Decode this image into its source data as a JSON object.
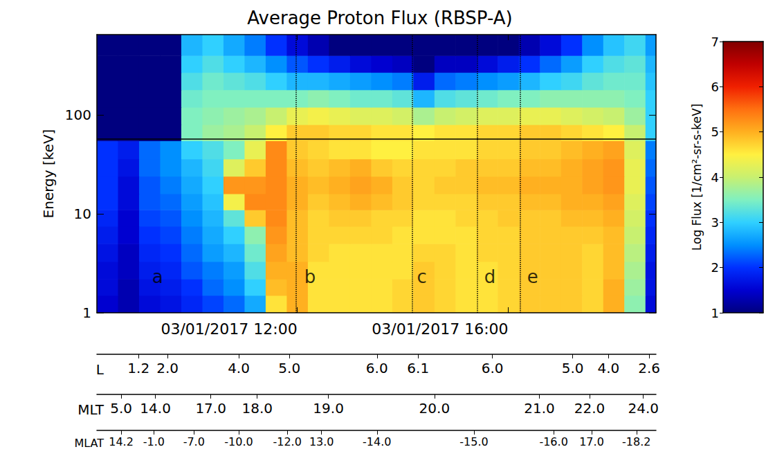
{
  "chart_data": {
    "type": "spectrogram",
    "title": "Average Proton Flux (RBSP-A)",
    "y_label": "Energy [keV]",
    "log": "y",
    "xlim": [
      8.2,
      18.8
    ],
    "xticks": [
      {
        "value": 12,
        "label": "03/01/2017 12:00"
      },
      {
        "value": 16,
        "label": "03/01/2017 16:00"
      }
    ],
    "ylim": [
      1,
      650
    ],
    "yticks": [
      1,
      10,
      100
    ],
    "time_edges": [
      8.2,
      8.6,
      9.0,
      9.4,
      9.8,
      10.2,
      10.6,
      11.0,
      11.4,
      11.8,
      12.2,
      12.6,
      13.0,
      13.4,
      13.8,
      14.2,
      14.6,
      15.0,
      15.4,
      15.8,
      16.2,
      16.6,
      17.0,
      17.4,
      17.8,
      18.2,
      18.6,
      18.8
    ],
    "energy_edges": [
      1,
      1.5,
      2.2,
      3.3,
      5,
      7.5,
      11,
      16,
      24,
      36,
      55,
      80,
      120,
      180,
      270,
      400,
      650
    ],
    "cells": [
      [
        1.5,
        1.3,
        1.6,
        1.7,
        1.9,
        2.1,
        2.3,
        2.7,
        4.6,
        5.0,
        4.6,
        4.6,
        4.6,
        4.6,
        4.7,
        4.8,
        4.7,
        4.6,
        4.6,
        4.7,
        4.8,
        4.8,
        4.8,
        4.7,
        5.0,
        3.6,
        1.6
      ],
      [
        1.6,
        1.3,
        1.7,
        1.8,
        2.0,
        2.3,
        2.5,
        3.0,
        4.9,
        5.0,
        4.6,
        4.6,
        4.6,
        4.6,
        4.7,
        4.8,
        4.7,
        4.6,
        4.6,
        4.7,
        4.8,
        4.8,
        4.8,
        4.7,
        5.0,
        3.7,
        1.7
      ],
      [
        1.6,
        1.4,
        1.8,
        1.9,
        2.2,
        2.4,
        2.6,
        3.2,
        5.0,
        5.0,
        4.6,
        4.6,
        4.6,
        4.6,
        4.6,
        4.8,
        4.7,
        4.6,
        4.6,
        4.7,
        4.8,
        4.8,
        4.8,
        4.7,
        4.9,
        3.8,
        1.7
      ],
      [
        1.7,
        1.4,
        1.9,
        2.0,
        2.3,
        2.6,
        2.8,
        3.4,
        5.1,
        4.9,
        4.7,
        4.6,
        4.6,
        4.6,
        4.6,
        4.7,
        4.7,
        4.6,
        4.7,
        4.7,
        4.8,
        4.8,
        4.8,
        4.7,
        4.9,
        3.9,
        1.8
      ],
      [
        1.8,
        1.5,
        2.0,
        2.1,
        2.4,
        2.7,
        3.0,
        3.6,
        5.2,
        4.9,
        4.7,
        4.7,
        4.7,
        4.7,
        4.6,
        4.6,
        4.6,
        4.6,
        4.7,
        4.7,
        4.8,
        4.8,
        4.8,
        4.8,
        4.9,
        4.0,
        1.9
      ],
      [
        1.9,
        1.5,
        2.1,
        2.2,
        2.5,
        2.8,
        3.3,
        4.8,
        5.3,
        4.9,
        4.7,
        4.8,
        4.8,
        4.7,
        4.7,
        4.6,
        4.6,
        4.7,
        4.7,
        4.8,
        4.8,
        4.8,
        4.9,
        4.9,
        5.0,
        4.1,
        2.0
      ],
      [
        2.0,
        1.6,
        2.2,
        2.3,
        2.6,
        2.9,
        4.4,
        5.3,
        5.3,
        5.0,
        4.8,
        4.9,
        5.0,
        4.9,
        4.8,
        4.7,
        4.7,
        4.7,
        4.8,
        4.8,
        4.9,
        4.9,
        5.0,
        5.0,
        5.1,
        4.2,
        2.1
      ],
      [
        2.0,
        1.6,
        2.2,
        2.4,
        2.7,
        3.0,
        5.2,
        5.2,
        5.3,
        5.0,
        4.9,
        5.0,
        5.1,
        5.0,
        4.8,
        4.7,
        4.8,
        4.8,
        4.9,
        4.9,
        5.0,
        5.0,
        5.0,
        5.1,
        5.2,
        4.3,
        2.2
      ],
      [
        2.0,
        1.7,
        2.3,
        2.5,
        2.8,
        3.1,
        4.2,
        4.8,
        5.3,
        4.9,
        4.8,
        4.9,
        5.0,
        4.8,
        4.7,
        4.7,
        4.7,
        4.8,
        4.8,
        4.8,
        4.9,
        4.9,
        5.0,
        5.1,
        5.2,
        4.3,
        2.3
      ],
      [
        2.0,
        1.8,
        2.3,
        2.5,
        3.0,
        3.2,
        3.5,
        4.3,
        5.3,
        4.8,
        4.7,
        4.6,
        4.6,
        4.5,
        4.5,
        4.6,
        4.6,
        4.6,
        4.7,
        4.7,
        4.8,
        4.8,
        4.9,
        5.0,
        5.1,
        4.2,
        2.4
      ],
      [
        0.5,
        0.5,
        0.5,
        0.5,
        3.5,
        3.7,
        3.8,
        4.0,
        4.5,
        4.8,
        4.8,
        4.7,
        4.7,
        4.6,
        4.6,
        4.5,
        4.6,
        4.6,
        4.7,
        4.7,
        4.8,
        4.8,
        4.7,
        4.6,
        4.5,
        4.0,
        3.0
      ],
      [
        0.5,
        0.5,
        0.5,
        0.5,
        3.5,
        3.6,
        3.7,
        3.8,
        4.0,
        4.3,
        4.4,
        4.3,
        4.2,
        4.2,
        4.1,
        3.8,
        4.0,
        4.1,
        4.2,
        4.2,
        4.3,
        4.3,
        4.2,
        4.1,
        4.0,
        3.7,
        3.0
      ],
      [
        0.5,
        0.5,
        0.5,
        0.5,
        3.4,
        3.5,
        3.5,
        3.5,
        3.5,
        3.5,
        3.6,
        3.5,
        3.4,
        3.4,
        3.3,
        2.8,
        3.2,
        3.3,
        3.4,
        3.5,
        3.5,
        3.6,
        3.6,
        3.6,
        3.6,
        3.5,
        3.0
      ],
      [
        0.5,
        0.5,
        0.5,
        0.5,
        3.2,
        3.4,
        3.3,
        3.2,
        3.0,
        2.8,
        2.8,
        2.7,
        2.6,
        2.5,
        2.4,
        1.8,
        2.3,
        2.4,
        2.5,
        2.6,
        2.8,
        3.0,
        3.1,
        3.3,
        3.4,
        3.4,
        2.9
      ],
      [
        0.5,
        0.5,
        0.5,
        0.5,
        3.0,
        3.2,
        3.0,
        2.8,
        2.5,
        2.2,
        2.0,
        1.8,
        1.6,
        1.5,
        1.4,
        0.8,
        1.4,
        1.4,
        1.6,
        1.8,
        2.0,
        2.3,
        2.6,
        3.0,
        3.2,
        3.3,
        2.8
      ],
      [
        0.5,
        0.5,
        0.5,
        0.5,
        2.8,
        3.0,
        2.7,
        2.4,
        2.0,
        1.6,
        1.3,
        1.0,
        0.8,
        0.8,
        0.8,
        0.5,
        0.8,
        0.8,
        0.8,
        1.0,
        1.3,
        1.6,
        2.0,
        2.5,
        2.9,
        3.1,
        2.6
      ]
    ],
    "colorbar": {
      "label": "Log Flux [1/cm²-sr-s-keV]",
      "range": [
        1,
        7
      ],
      "ticks": [
        1,
        2,
        3,
        4,
        5,
        6,
        7
      ]
    },
    "vlines": [
      11.98,
      14.18,
      15.41,
      16.23
    ],
    "hline": 57,
    "annotations": [
      {
        "text": "a",
        "x": 9.35,
        "y": 2.3
      },
      {
        "text": "b",
        "x": 12.24,
        "y": 2.3
      },
      {
        "text": "c",
        "x": 14.36,
        "y": 2.3
      },
      {
        "text": "d",
        "x": 15.65,
        "y": 2.3
      },
      {
        "text": "e",
        "x": 16.46,
        "y": 2.3
      }
    ],
    "rows": [
      {
        "name": "L",
        "ticks": [
          {
            "value": 8.99,
            "label": "1.2"
          },
          {
            "value": 9.54,
            "label": "2.0"
          },
          {
            "value": 10.89,
            "label": "4.0"
          },
          {
            "value": 11.85,
            "label": "5.0"
          },
          {
            "value": 13.51,
            "label": "6.0"
          },
          {
            "value": 14.29,
            "label": "6.1"
          },
          {
            "value": 15.7,
            "label": "6.0"
          },
          {
            "value": 17.22,
            "label": "5.0"
          },
          {
            "value": 17.9,
            "label": "4.0"
          },
          {
            "value": 18.67,
            "label": "2.6"
          }
        ]
      },
      {
        "name": "MLT",
        "ticks": [
          {
            "value": 8.66,
            "label": "5.0"
          },
          {
            "value": 9.31,
            "label": "14.0"
          },
          {
            "value": 10.36,
            "label": "17.0"
          },
          {
            "value": 11.24,
            "label": "18.0"
          },
          {
            "value": 12.59,
            "label": "19.0"
          },
          {
            "value": 14.6,
            "label": "20.0"
          },
          {
            "value": 16.59,
            "label": "21.0"
          },
          {
            "value": 17.54,
            "label": "22.0"
          },
          {
            "value": 18.56,
            "label": "24.0"
          }
        ]
      },
      {
        "name": "MLAT",
        "ticks": [
          {
            "value": 8.66,
            "label": "14.2"
          },
          {
            "value": 9.28,
            "label": "-1.0"
          },
          {
            "value": 10.04,
            "label": "-7.0"
          },
          {
            "value": 10.89,
            "label": "-10.0"
          },
          {
            "value": 11.81,
            "label": "-12.0"
          },
          {
            "value": 12.46,
            "label": "13.0"
          },
          {
            "value": 13.51,
            "label": "-14.0"
          },
          {
            "value": 15.35,
            "label": "-15.0"
          },
          {
            "value": 16.86,
            "label": "-16.0"
          },
          {
            "value": 17.58,
            "label": "17.0"
          },
          {
            "value": 18.43,
            "label": "-18.2"
          }
        ]
      }
    ]
  }
}
